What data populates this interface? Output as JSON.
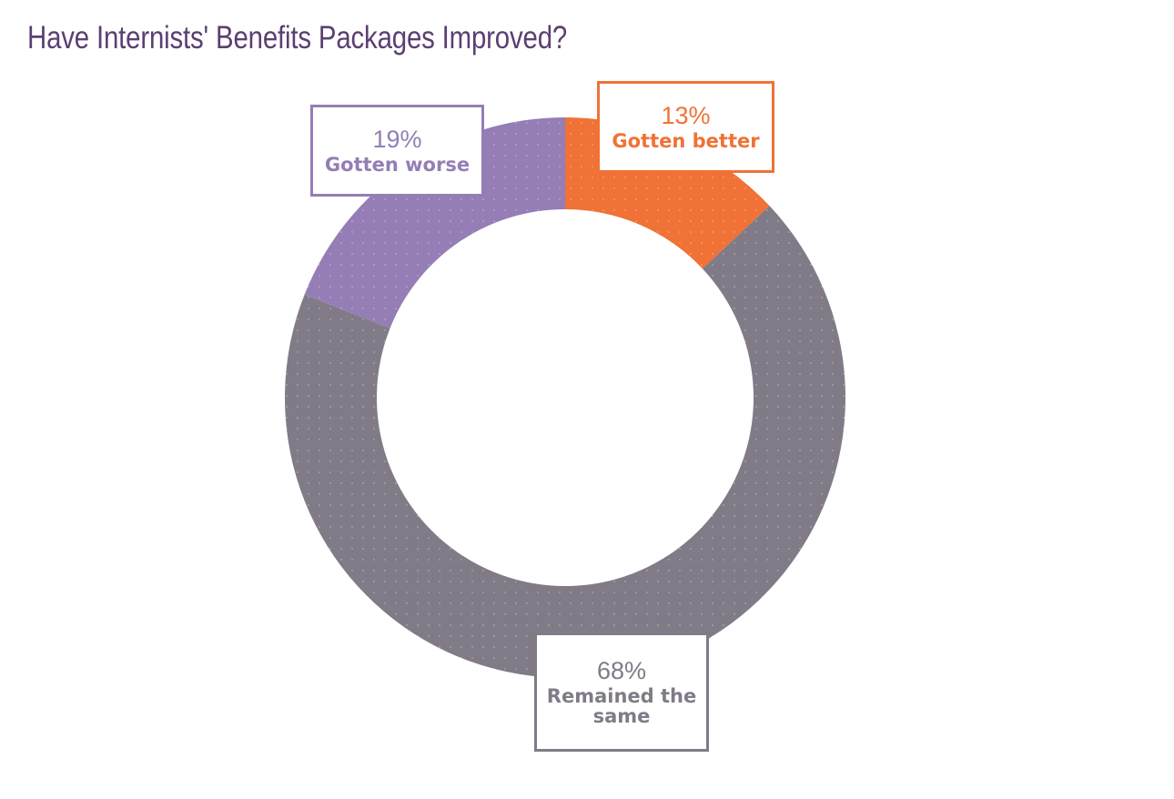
{
  "chart_data": {
    "type": "pie",
    "title": "Have Internists' Benefits Packages Improved?",
    "donut": true,
    "slices": [
      {
        "label": "Gotten better",
        "value": 13,
        "value_label": "13%",
        "color": "#f07236"
      },
      {
        "label": "Remained the same",
        "value": 68,
        "value_label": "68%",
        "color": "#807b87"
      },
      {
        "label": "Gotten worse",
        "value": 19,
        "value_label": "19%",
        "color": "#947eb5"
      }
    ]
  }
}
